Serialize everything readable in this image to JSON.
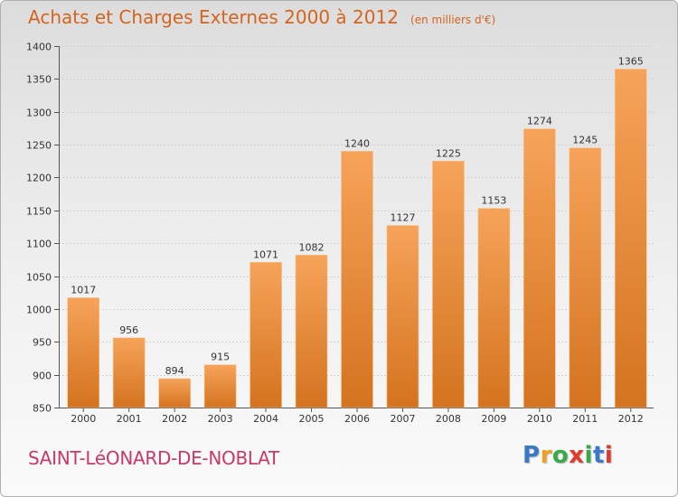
{
  "title": "Achats et Charges Externes 2000 à 2012",
  "unit_note": "(en milliers d'€)",
  "city": "SAINT-LéONARD-DE-NOBLAT",
  "logo": {
    "letters": [
      "P",
      "r",
      "o",
      "x",
      "i",
      "t",
      "i"
    ],
    "colors": [
      "#3a78c8",
      "#f0a020",
      "#3aa848",
      "#e03a2a",
      "#3aa848",
      "#3a78c8",
      "#e03a2a"
    ]
  },
  "colors": {
    "bar_light": "#f6a35a",
    "bar_dark": "#d4731f",
    "title": "#d4641e",
    "city": "#c8386a"
  },
  "chart_data": {
    "type": "bar",
    "categories": [
      "2000",
      "2001",
      "2002",
      "2003",
      "2004",
      "2005",
      "2006",
      "2007",
      "2008",
      "2009",
      "2010",
      "2011",
      "2012"
    ],
    "values": [
      1017,
      956,
      894,
      915,
      1071,
      1082,
      1240,
      1127,
      1225,
      1153,
      1274,
      1245,
      1365
    ],
    "ylim": [
      850,
      1400
    ],
    "yticks": [
      850,
      900,
      950,
      1000,
      1050,
      1100,
      1150,
      1200,
      1250,
      1300,
      1350,
      1400
    ],
    "grid": true
  }
}
